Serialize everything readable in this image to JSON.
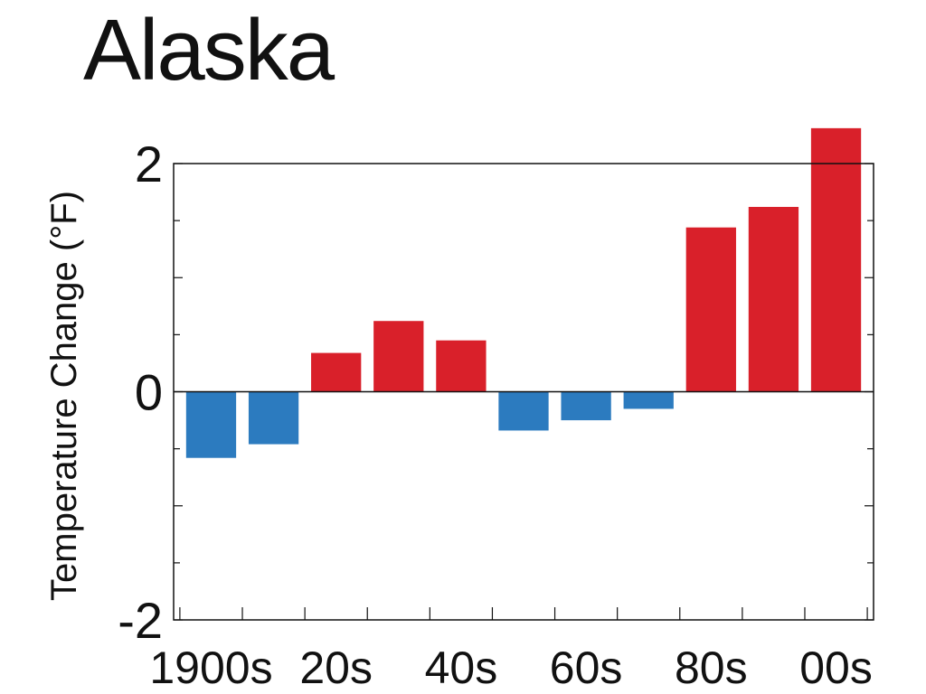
{
  "title": "Alaska",
  "chart_data": {
    "type": "bar",
    "title": "Alaska",
    "xlabel": "",
    "ylabel": "Temperature Change (°F)",
    "ylim": [
      -2,
      2
    ],
    "yticks": [
      "2",
      "0",
      "-2"
    ],
    "ytick_values": [
      2,
      0,
      -2
    ],
    "xtick_labels": [
      "1900s",
      "20s",
      "40s",
      "60s",
      "80s",
      "00s"
    ],
    "categories": [
      "1900s",
      "1910s",
      "1920s",
      "1930s",
      "1940s",
      "1950s",
      "1960s",
      "1970s",
      "1980s",
      "1990s",
      "2000s"
    ],
    "values": [
      -0.58,
      -0.46,
      0.34,
      0.62,
      0.45,
      -0.34,
      -0.25,
      -0.15,
      1.44,
      1.62,
      2.31
    ],
    "colors": {
      "positive": "#d9202a",
      "negative": "#2c7bbf",
      "axis": "#111111"
    },
    "grid": false,
    "legend": "none"
  }
}
